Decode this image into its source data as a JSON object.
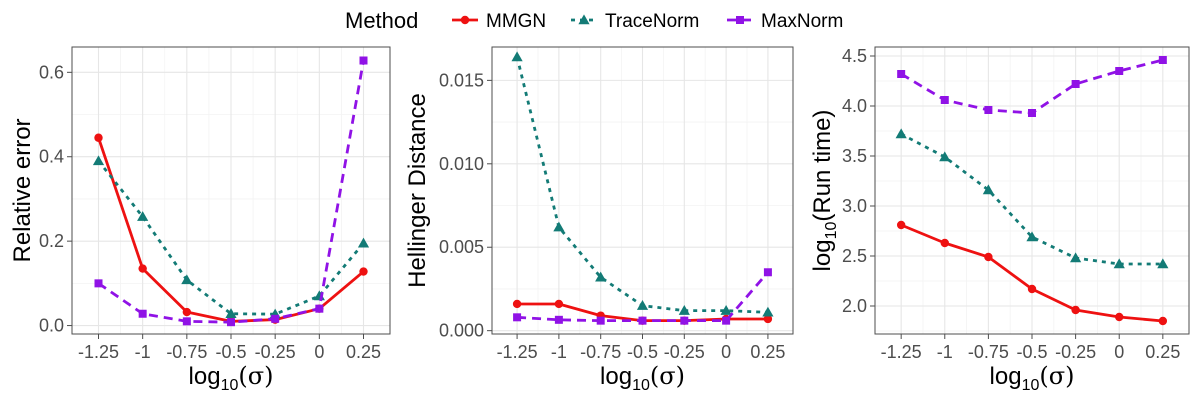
{
  "legend": {
    "title": "Method",
    "entries": [
      "MMGN",
      "TraceNorm",
      "MaxNorm"
    ]
  },
  "series_style": [
    {
      "name": "MMGN",
      "color": "#ee1111",
      "marker": "circle",
      "dash": "solid"
    },
    {
      "name": "TraceNorm",
      "color": "#137b76",
      "marker": "triangle",
      "dash": "dotted"
    },
    {
      "name": "MaxNorm",
      "color": "#9012e6",
      "marker": "square",
      "dash": "dashed"
    }
  ],
  "chart_data": [
    {
      "type": "line",
      "title": "",
      "xlabel": "log10(σ)",
      "ylabel": "Relative error",
      "x": [
        -1.25,
        -1,
        -0.75,
        -0.5,
        -0.25,
        0,
        0.25
      ],
      "xticks": [
        "-1.25",
        "-1",
        "-0.75",
        "-0.5",
        "-0.25",
        "0",
        "0.25"
      ],
      "yticks": [
        "0.0",
        "0.2",
        "0.4",
        "0.6"
      ],
      "ytick_values": [
        0,
        0.2,
        0.4,
        0.6
      ],
      "xlim": [
        -1.4,
        0.4
      ],
      "ylim": [
        -0.02,
        0.66
      ],
      "grid": true,
      "series": [
        {
          "name": "MMGN",
          "values": [
            0.445,
            0.135,
            0.032,
            0.01,
            0.014,
            0.04,
            0.128
          ]
        },
        {
          "name": "TraceNorm",
          "values": [
            0.39,
            0.258,
            0.108,
            0.028,
            0.027,
            0.07,
            0.195
          ]
        },
        {
          "name": "MaxNorm",
          "values": [
            0.1,
            0.028,
            0.01,
            0.008,
            0.016,
            0.04,
            0.628
          ]
        }
      ]
    },
    {
      "type": "line",
      "title": "",
      "xlabel": "log10(σ)",
      "ylabel": "Hellinger Distance",
      "x": [
        -1.25,
        -1,
        -0.75,
        -0.5,
        -0.25,
        0,
        0.25
      ],
      "xticks": [
        "-1.25",
        "-1",
        "-0.75",
        "-0.5",
        "-0.25",
        "0",
        "0.25"
      ],
      "yticks": [
        "0.000",
        "0.005",
        "0.010",
        "0.015"
      ],
      "ytick_values": [
        0,
        0.005,
        0.01,
        0.015
      ],
      "xlim": [
        -1.4,
        0.4
      ],
      "ylim": [
        -0.0002,
        0.017
      ],
      "grid": true,
      "series": [
        {
          "name": "MMGN",
          "values": [
            0.0016,
            0.0016,
            0.0009,
            0.0006,
            0.0006,
            0.0007,
            0.0007
          ]
        },
        {
          "name": "TraceNorm",
          "values": [
            0.0164,
            0.0062,
            0.0032,
            0.0015,
            0.0012,
            0.0012,
            0.0011
          ]
        },
        {
          "name": "MaxNorm",
          "values": [
            0.0008,
            0.00065,
            0.0006,
            0.0006,
            0.0006,
            0.0006,
            0.0035
          ]
        }
      ]
    },
    {
      "type": "line",
      "title": "",
      "xlabel": "log10(σ)",
      "ylabel": "log10(Run time)",
      "x": [
        -1.25,
        -1,
        -0.75,
        -0.5,
        -0.25,
        0,
        0.25
      ],
      "xticks": [
        "-1.25",
        "-1",
        "-0.75",
        "-0.5",
        "-0.25",
        "0",
        "0.25"
      ],
      "yticks": [
        "2.0",
        "2.5",
        "3.0",
        "3.5",
        "4.0",
        "4.5"
      ],
      "ytick_values": [
        2.0,
        2.5,
        3.0,
        3.5,
        4.0,
        4.5
      ],
      "xlim": [
        -1.4,
        0.4
      ],
      "ylim": [
        1.72,
        4.59
      ],
      "grid": true,
      "series": [
        {
          "name": "MMGN",
          "values": [
            2.81,
            2.63,
            2.49,
            2.17,
            1.96,
            1.89,
            1.85
          ]
        },
        {
          "name": "TraceNorm",
          "values": [
            3.72,
            3.49,
            3.16,
            2.69,
            2.48,
            2.42,
            2.42
          ]
        },
        {
          "name": "MaxNorm",
          "values": [
            4.32,
            4.06,
            3.96,
            3.93,
            4.22,
            4.35,
            4.46
          ]
        }
      ]
    }
  ]
}
